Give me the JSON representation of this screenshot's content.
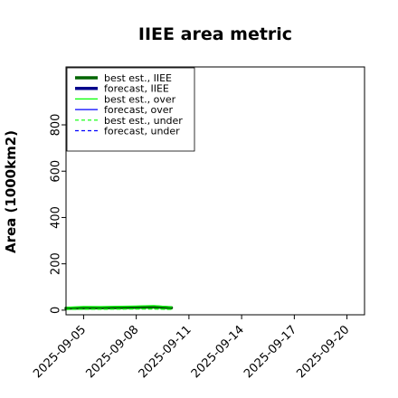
{
  "chart_data": {
    "type": "line",
    "title": "IIEE area metric",
    "xlabel": "",
    "ylabel": "Area (1000km2)",
    "ylim": [
      -20,
      1050
    ],
    "y_ticks": [
      0,
      200,
      400,
      600,
      800
    ],
    "x_ticks": [
      "2025-09-05",
      "2025-09-08",
      "2025-09-11",
      "2025-09-14",
      "2025-09-17",
      "2025-09-20"
    ],
    "highlight_tick": "2025-09-11",
    "highlight_color": "#228b22",
    "xlim": [
      "2025-09-04",
      "2025-09-21"
    ],
    "grid": false,
    "legend_position": "top-left",
    "series": [
      {
        "name": "best est., IIEE",
        "color": "#006400",
        "style": "solid",
        "width": 3.5,
        "x": [
          "2025-09-04",
          "2025-09-06",
          "2025-09-08",
          "2025-09-09",
          "2025-09-10"
        ],
        "y": [
          8,
          10,
          12,
          14,
          10
        ]
      },
      {
        "name": "forecast, IIEE",
        "color": "#00008b",
        "style": "solid",
        "width": 3.5,
        "x": [],
        "y": []
      },
      {
        "name": "best est., over",
        "color": "#00ff00",
        "style": "solid",
        "width": 1.2,
        "x": [
          "2025-09-04",
          "2025-09-05",
          "2025-09-06",
          "2025-09-08",
          "2025-09-09",
          "2025-09-10"
        ],
        "y": [
          12,
          16,
          15,
          18,
          20,
          14
        ]
      },
      {
        "name": "forecast, over",
        "color": "#0000ff",
        "style": "solid",
        "width": 1.2,
        "x": [],
        "y": []
      },
      {
        "name": "best est., under",
        "color": "#00ff00",
        "style": "dashed",
        "width": 1.2,
        "x": [
          "2025-09-04",
          "2025-09-05",
          "2025-09-06",
          "2025-09-08",
          "2025-09-09",
          "2025-09-10"
        ],
        "y": [
          3,
          4,
          4,
          5,
          5,
          3
        ]
      },
      {
        "name": "forecast, under",
        "color": "#0000ff",
        "style": "dashed",
        "width": 1.2,
        "x": [],
        "y": []
      }
    ]
  }
}
